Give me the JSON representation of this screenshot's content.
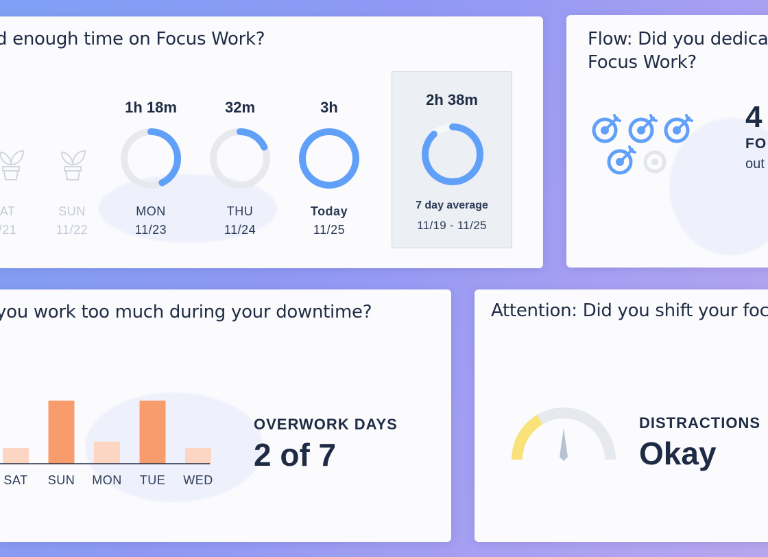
{
  "focus": {
    "title": "d enough time on Focus Work?",
    "days": [
      {
        "name": "AT",
        "date": "/21",
        "duration": "",
        "progress": null,
        "state": "inactive"
      },
      {
        "name": "SUN",
        "date": "11/22",
        "duration": "",
        "progress": null,
        "state": "inactive"
      },
      {
        "name": "MON",
        "date": "11/23",
        "duration": "1h 18m",
        "progress": 0.43,
        "state": "normal"
      },
      {
        "name": "THU",
        "date": "11/24",
        "duration": "32m",
        "progress": 0.18,
        "state": "normal"
      },
      {
        "name": "Today",
        "date": "11/25",
        "duration": "3h",
        "progress": 1.0,
        "state": "today"
      }
    ],
    "average": {
      "duration": "2h 38m",
      "label": "7 day average",
      "range": "11/19 - 11/25",
      "progress": 0.88
    }
  },
  "flow": {
    "title_line1": "Flow: Did you dedicat",
    "title_line2": "Focus Work?",
    "stat_value": "4",
    "stat_label": "FO",
    "stat_sub": "out",
    "targets_hit": 4,
    "targets_total": 5
  },
  "overwork": {
    "title": "you work too much during your downtime?",
    "label": "OVERWORK DAYS",
    "value": "2 of 7"
  },
  "attention": {
    "title": "Attention: Did you shift your focus",
    "label": "DISTRACTIONS",
    "value": "Okay",
    "gauge_level": 0.33
  },
  "chart_data": {
    "type": "bar",
    "categories": [
      "SAT",
      "SUN",
      "MON",
      "TUE",
      "WED"
    ],
    "values": [
      1,
      4,
      1.4,
      4,
      1
    ],
    "highlighted": [
      false,
      true,
      false,
      true,
      false
    ],
    "title": "",
    "xlabel": "",
    "ylabel": "",
    "colors": {
      "highlight": "#f89c6e",
      "normal": "#fdd5c3"
    }
  },
  "colors": {
    "ring_blue": "#61a0f9",
    "ring_track": "#e7e9ee",
    "gauge_yellow": "#f9e27a",
    "gauge_track": "#e6e9ee",
    "text_dark": "#1e2b44"
  }
}
